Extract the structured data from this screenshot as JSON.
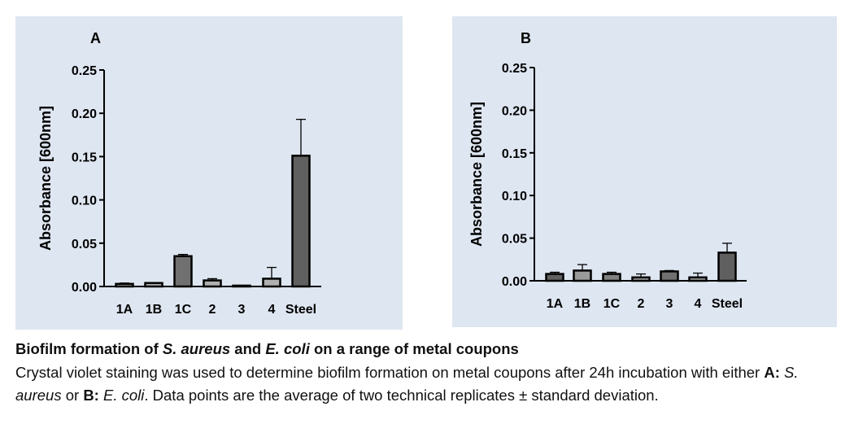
{
  "chart_data": [
    {
      "panel": "A",
      "type": "bar",
      "ylabel": "Absorbance [600nm]",
      "ylim": [
        0,
        0.25
      ],
      "yticks": [
        "0.00",
        "0.05",
        "0.10",
        "0.15",
        "0.20",
        "0.25"
      ],
      "categories": [
        "1A",
        "1B",
        "1C",
        "2",
        "3",
        "4",
        "Steel"
      ],
      "values": [
        0.003,
        0.004,
        0.035,
        0.007,
        0.001,
        0.009,
        0.151
      ],
      "errors": [
        0.001,
        0.0,
        0.002,
        0.002,
        0.0,
        0.013,
        0.042
      ],
      "fills": [
        "#b0b0b0",
        "#b0b0b0",
        "#707070",
        "#b0b0b0",
        "#b0b0b0",
        "#b0b0b0",
        "#606060"
      ]
    },
    {
      "panel": "B",
      "type": "bar",
      "ylabel": "Absorbance [600nm]",
      "ylim": [
        0,
        0.25
      ],
      "yticks": [
        "0.00",
        "0.05",
        "0.10",
        "0.15",
        "0.20",
        "0.25"
      ],
      "categories": [
        "1A",
        "1B",
        "1C",
        "2",
        "3",
        "4",
        "Steel"
      ],
      "values": [
        0.008,
        0.012,
        0.008,
        0.004,
        0.011,
        0.004,
        0.033
      ],
      "errors": [
        0.002,
        0.007,
        0.002,
        0.004,
        0.001,
        0.005,
        0.011
      ],
      "fills": [
        "#606060",
        "#9a9a9a",
        "#808080",
        "#9a9a9a",
        "#707070",
        "#9a9a9a",
        "#606060"
      ]
    }
  ],
  "caption": {
    "title_1": "Biofilm formation of ",
    "title_2": "S. aureus",
    "title_3": " and ",
    "title_4": "E. coli",
    "title_5": " on a range of metal coupons",
    "body_1": "Crystal violet staining was used to determine biofilm formation on metal coupons after 24h incubation with either ",
    "body_a": "A:",
    "body_2": " ",
    "body_sa": "S. aureus",
    "body_3": " or ",
    "body_b": "B:",
    "body_4": " ",
    "body_ec": "E. coli",
    "body_5": ". Data points are the average of two technical replicates ± standard deviation."
  }
}
